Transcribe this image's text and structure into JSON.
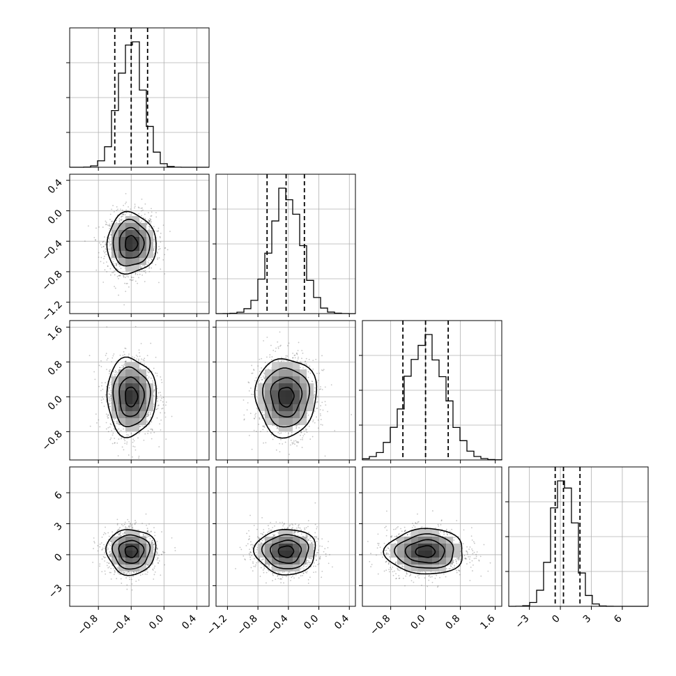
{
  "colors": {
    "line": "#000000",
    "grid": "#b0b0b0",
    "points": "#555555",
    "density_max": "#1a1a1a"
  },
  "chart_data": {
    "type": "corner",
    "n_params": 4,
    "params": [
      {
        "index": 0,
        "range": [
          -1.15,
          0.55
        ],
        "mean": -0.4,
        "sd": 0.15,
        "quantiles": [
          -0.6,
          -0.4,
          -0.2
        ],
        "ticks": [
          -0.8,
          -0.4,
          0.0,
          0.4
        ],
        "tick_labels": [
          "−0.8",
          "−0.4",
          "0.0",
          "0.4"
        ]
      },
      {
        "index": 1,
        "range": [
          -1.35,
          0.48
        ],
        "mean": -0.43,
        "sd": 0.2,
        "quantiles": [
          -0.68,
          -0.43,
          -0.19
        ],
        "ticks": [
          -1.2,
          -0.8,
          -0.4,
          0.0,
          0.4
        ],
        "tick_labels": [
          "−1.2",
          "−0.8",
          "−0.4",
          "0.0",
          "0.4"
        ]
      },
      {
        "index": 2,
        "range": [
          -1.45,
          1.75
        ],
        "mean": 0.0,
        "sd": 0.45,
        "quantiles": [
          -0.52,
          0.0,
          0.52
        ],
        "ticks": [
          -0.8,
          0.0,
          0.8,
          1.6
        ],
        "tick_labels": [
          "−0.8",
          "0.0",
          "0.8",
          "1.6"
        ]
      },
      {
        "index": 3,
        "range": [
          -5.0,
          8.5
        ],
        "mean": 0.3,
        "sd": 1.1,
        "quantiles": [
          -0.5,
          0.3,
          1.9
        ],
        "ticks": [
          -3,
          0,
          3,
          6
        ],
        "tick_labels": [
          "−3",
          "0",
          "3",
          "6"
        ]
      }
    ],
    "y_tick_labels": {
      "1": [
        "0.4",
        "0.0",
        "−0.4",
        "−0.8",
        "−1.2"
      ],
      "2": [
        "1.6",
        "0.8",
        "0.0",
        "−0.8"
      ],
      "3": [
        "6",
        "3",
        "0",
        "−3"
      ]
    },
    "hist_bins": 20,
    "contour_levels": 4,
    "grid": true
  }
}
